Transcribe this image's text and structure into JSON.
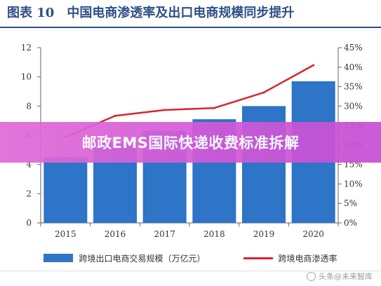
{
  "header": {
    "prefix": "图表 10",
    "title": "中国电商渗透率及出口电商规模同步提升"
  },
  "overlay": {
    "text": "邮政EMS国际快递收费标准拆解",
    "color": "#d35ad8"
  },
  "watermark": {
    "text": "头条@未来智库",
    "logo_icon": "toutiao-logo-icon"
  },
  "chart_data": {
    "type": "bar+line",
    "categories": [
      "2015",
      "2016",
      "2017",
      "2018",
      "2019",
      "2020"
    ],
    "series": [
      {
        "name": "跨境出口电商交易规模（万亿元）",
        "type": "bar",
        "axis": "left",
        "color": "#2e74c7",
        "values": [
          4.5,
          5.5,
          6.3,
          7.1,
          8.0,
          9.7
        ]
      },
      {
        "name": "跨境电商渗透率",
        "type": "line",
        "axis": "right",
        "color": "#d6262e",
        "values": [
          22.0,
          27.5,
          29.0,
          29.5,
          33.5,
          40.5
        ]
      }
    ],
    "y_left": {
      "min": 0,
      "max": 12,
      "ticks": [
        "0",
        "2",
        "4",
        "6",
        "8",
        "10",
        "12"
      ]
    },
    "y_right": {
      "min": 0,
      "max": 45,
      "ticks": [
        "0%",
        "5%",
        "10%",
        "15%",
        "20%",
        "25%",
        "30%",
        "35%",
        "40%",
        "45%"
      ]
    },
    "grid": false,
    "legend": "bottom"
  }
}
